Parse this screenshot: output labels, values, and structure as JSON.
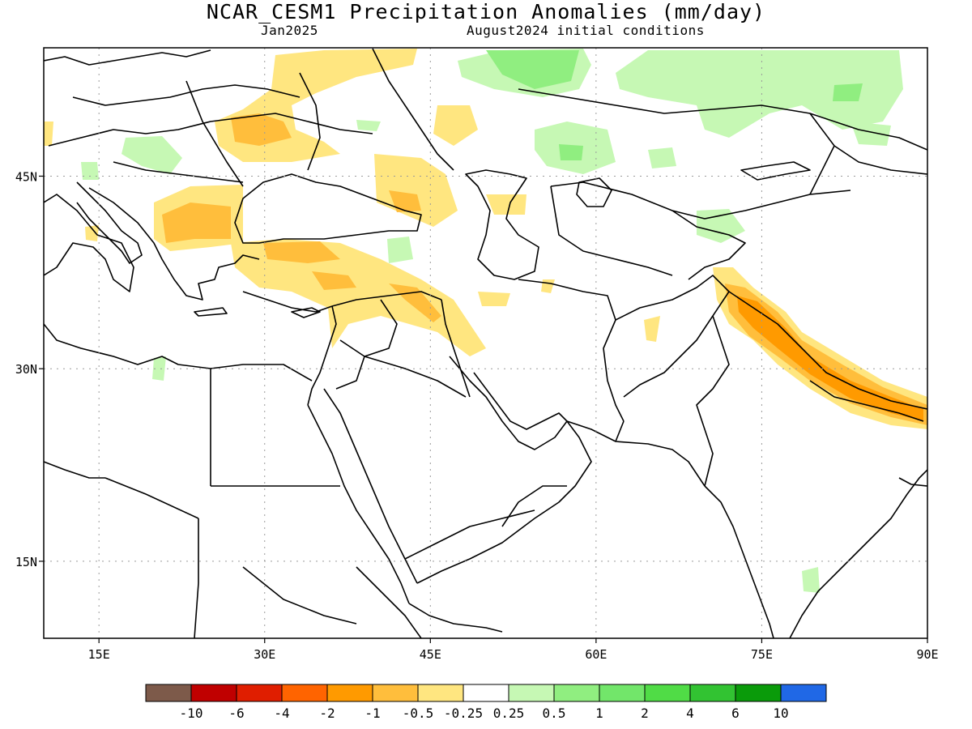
{
  "title": "NCAR_CESM1 Precipitation Anomalies (mm/day)",
  "subtitle_left": "Jan2025",
  "subtitle_right": "August2024 initial conditions",
  "map": {
    "lon_range": [
      10,
      90
    ],
    "lat_range": [
      9,
      55
    ],
    "lon_ticks": [
      {
        "value": 15,
        "label": "15E"
      },
      {
        "value": 30,
        "label": "30E"
      },
      {
        "value": 45,
        "label": "45E"
      },
      {
        "value": 60,
        "label": "60E"
      },
      {
        "value": 75,
        "label": "75E"
      },
      {
        "value": 90,
        "label": "90E"
      }
    ],
    "lat_ticks": [
      {
        "value": 45,
        "label": "45N"
      },
      {
        "value": 30,
        "label": "30N"
      },
      {
        "value": 15,
        "label": "15N"
      }
    ],
    "gridlines": "dotted"
  },
  "colorbar": {
    "colors": [
      "#7d5a4a",
      "#c00000",
      "#e01e00",
      "#ff6400",
      "#ff9a00",
      "#ffbe3c",
      "#ffe680",
      "#ffffff",
      "#c6f8b4",
      "#90ee80",
      "#72e66a",
      "#50dc46",
      "#32c332",
      "#0a9b0a",
      "#2068e6"
    ],
    "labels": [
      "-10",
      "-6",
      "-4",
      "-2",
      "-1",
      "-0.5",
      "-0.25",
      "0.25",
      "0.5",
      "1",
      "2",
      "4",
      "6",
      "10"
    ]
  }
}
